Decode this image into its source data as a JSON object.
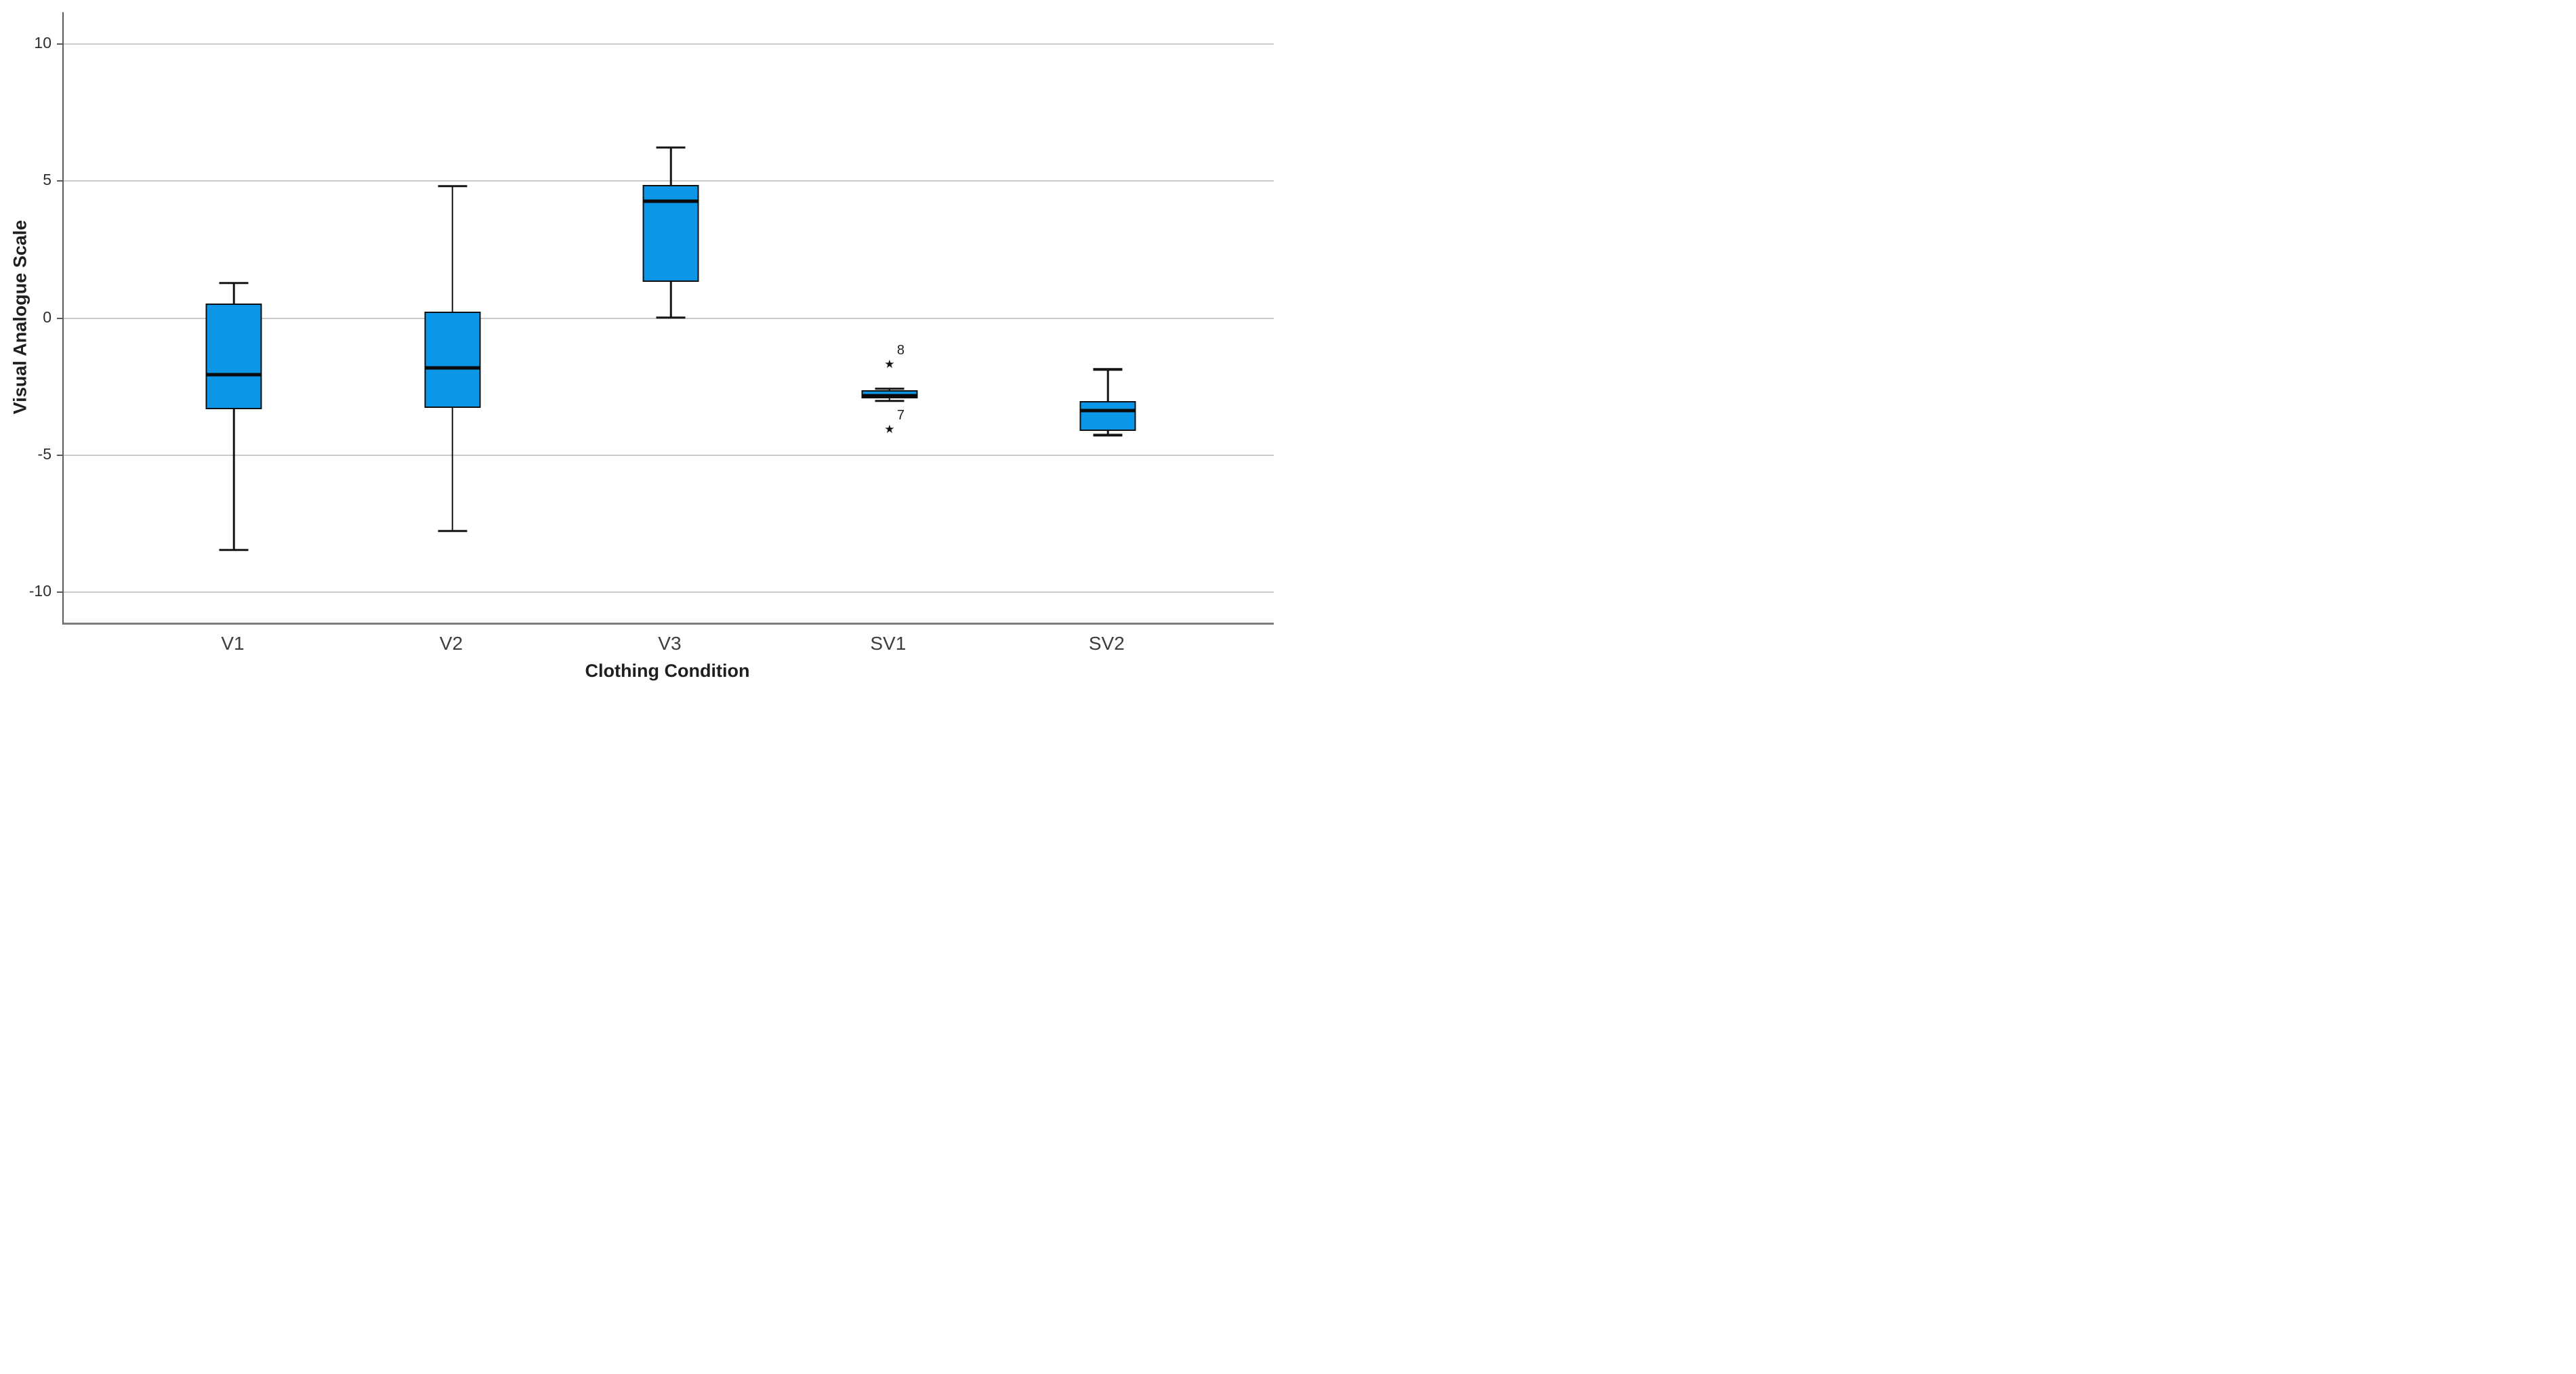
{
  "chart_data": {
    "type": "boxplot",
    "title": "",
    "xlabel": "Clothing Condition",
    "ylabel": "Visual Analogue Scale",
    "categories": [
      "V1",
      "V2",
      "V3",
      "SV1",
      "SV2"
    ],
    "y_ticks": [
      10,
      5,
      0,
      -5,
      -10
    ],
    "ylim": [
      -11.15,
      11.15
    ],
    "grid": "horizontal",
    "legend": "none",
    "box_fill": "#0b96e8",
    "line_color": "#151515",
    "gridline_color": "#cacaca",
    "outlier_marker": "★",
    "series": [
      {
        "category": "V1",
        "whisker_low": -8.5,
        "q1": -3.35,
        "median": -2.1,
        "q3": 0.5,
        "whisker_high": 1.25,
        "outliers": []
      },
      {
        "category": "V2",
        "whisker_low": -7.8,
        "q1": -3.3,
        "median": -1.85,
        "q3": 0.2,
        "whisker_high": 4.8,
        "outliers": []
      },
      {
        "category": "V3",
        "whisker_low": 0.0,
        "q1": 1.3,
        "median": 4.25,
        "q3": 4.85,
        "whisker_high": 6.2,
        "outliers": []
      },
      {
        "category": "SV1",
        "whisker_low": -3.05,
        "q1": -2.95,
        "median": -2.85,
        "q3": -2.65,
        "whisker_high": -2.6,
        "outliers": [
          {
            "label": "8",
            "value": -1.73
          },
          {
            "label": "7",
            "value": -4.1
          }
        ]
      },
      {
        "category": "SV2",
        "whisker_low": -4.3,
        "q1": -4.15,
        "median": -3.4,
        "q3": -3.05,
        "whisker_high": -1.9,
        "outliers": []
      }
    ]
  }
}
